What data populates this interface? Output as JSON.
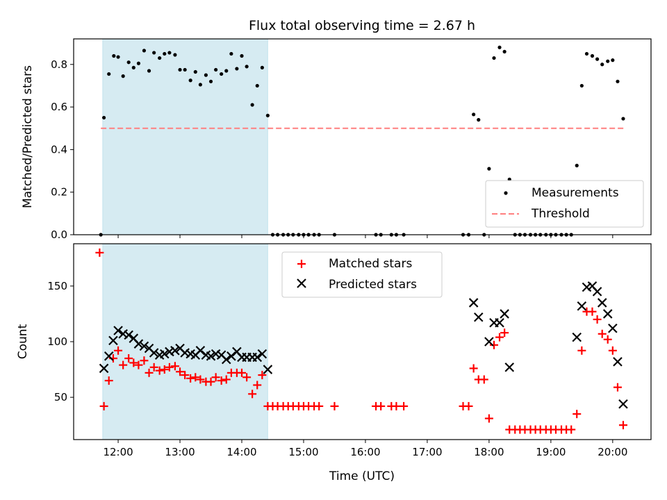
{
  "chart_data": [
    {
      "type": "scatter",
      "title": "Flux total observing time = 2.67 h",
      "xlabel": "",
      "ylabel": "Matched/Predicted stars",
      "ylim": [
        0,
        0.92
      ],
      "yticks": [
        0.0,
        0.2,
        0.4,
        0.6,
        0.8
      ],
      "ytick_labels": [
        "0.0",
        "0.2",
        "0.4",
        "0.6",
        "0.8"
      ],
      "xlim_hours": [
        11.28,
        20.62
      ],
      "xticks_hours": [
        12,
        13,
        14,
        15,
        16,
        17,
        18,
        19,
        20
      ],
      "shaded_span_hours": [
        11.75,
        14.42
      ],
      "legend": "lower-right",
      "threshold": {
        "name": "Threshold",
        "value": 0.5,
        "x_range_hours": [
          11.72,
          20.2
        ],
        "color": "#ff7f7f"
      },
      "series": [
        {
          "name": "Measurements",
          "color": "#000000",
          "marker": "dot",
          "x_hours": [
            11.72,
            11.77,
            11.85,
            11.93,
            12.0,
            12.08,
            12.17,
            12.25,
            12.33,
            12.42,
            12.5,
            12.58,
            12.67,
            12.75,
            12.83,
            12.92,
            13.0,
            13.08,
            13.17,
            13.25,
            13.33,
            13.42,
            13.5,
            13.58,
            13.67,
            13.75,
            13.83,
            13.92,
            14.0,
            14.08,
            14.17,
            14.25,
            14.33,
            14.42,
            14.5,
            14.58,
            14.67,
            14.75,
            14.83,
            14.92,
            15.0,
            15.08,
            15.17,
            15.25,
            15.5,
            16.17,
            16.25,
            16.42,
            16.5,
            16.62,
            17.58,
            17.67,
            17.75,
            17.83,
            17.92,
            18.0,
            18.08,
            18.17,
            18.25,
            18.33,
            18.42,
            18.5,
            18.58,
            18.67,
            18.75,
            18.83,
            18.92,
            19.0,
            19.08,
            19.17,
            19.25,
            19.33,
            19.42,
            19.5,
            19.58,
            19.67,
            19.75,
            19.83,
            19.92,
            20.0,
            20.08,
            20.17
          ],
          "y": [
            0.0,
            0.55,
            0.755,
            0.84,
            0.835,
            0.745,
            0.81,
            0.785,
            0.805,
            0.865,
            0.77,
            0.855,
            0.83,
            0.85,
            0.855,
            0.845,
            0.775,
            0.775,
            0.725,
            0.765,
            0.705,
            0.75,
            0.72,
            0.775,
            0.755,
            0.77,
            0.85,
            0.78,
            0.84,
            0.79,
            0.61,
            0.7,
            0.785,
            0.56,
            0.0,
            0.0,
            0.0,
            0.0,
            0.0,
            0.0,
            0.0,
            0.0,
            0.0,
            0.0,
            0.0,
            0.0,
            0.0,
            0.0,
            0.0,
            0.0,
            0.0,
            0.0,
            0.565,
            0.54,
            0.0,
            0.31,
            0.83,
            0.88,
            0.86,
            0.26,
            0.0,
            0.0,
            0.0,
            0.0,
            0.0,
            0.0,
            0.0,
            0.0,
            0.0,
            0.0,
            0.0,
            0.0,
            0.325,
            0.7,
            0.85,
            0.84,
            0.825,
            0.8,
            0.815,
            0.82,
            0.72,
            0.545
          ]
        }
      ]
    },
    {
      "type": "scatter",
      "title": "",
      "xlabel": "Time (UTC)",
      "ylabel": "Count",
      "ylim": [
        12,
        188
      ],
      "yticks": [
        50,
        100,
        150
      ],
      "ytick_labels": [
        "50",
        "100",
        "150"
      ],
      "xlim_hours": [
        11.28,
        20.62
      ],
      "xticks_hours": [
        12,
        13,
        14,
        15,
        16,
        17,
        18,
        19,
        20
      ],
      "xtick_labels": [
        "12:00",
        "13:00",
        "14:00",
        "15:00",
        "16:00",
        "17:00",
        "18:00",
        "19:00",
        "20:00"
      ],
      "shaded_span_hours": [
        11.75,
        14.42
      ],
      "legend": "upper-center",
      "series": [
        {
          "name": "Matched stars",
          "color": "#ff0000",
          "marker": "plus",
          "points": [
            [
              11.7,
              180
            ],
            [
              11.77,
              42
            ],
            [
              11.85,
              65
            ],
            [
              11.92,
              85
            ],
            [
              12.0,
              92
            ],
            [
              12.08,
              79
            ],
            [
              12.17,
              85
            ],
            [
              12.25,
              81
            ],
            [
              12.33,
              79
            ],
            [
              12.42,
              83
            ],
            [
              12.5,
              72
            ],
            [
              12.58,
              77
            ],
            [
              12.67,
              74
            ],
            [
              12.75,
              75
            ],
            [
              12.83,
              77
            ],
            [
              12.92,
              78
            ],
            [
              13.0,
              73
            ],
            [
              13.08,
              70
            ],
            [
              13.17,
              67
            ],
            [
              13.25,
              68
            ],
            [
              13.33,
              66
            ],
            [
              13.42,
              64
            ],
            [
              13.5,
              64
            ],
            [
              13.58,
              68
            ],
            [
              13.67,
              65
            ],
            [
              13.75,
              66
            ],
            [
              13.83,
              72
            ],
            [
              13.92,
              72
            ],
            [
              14.0,
              72
            ],
            [
              14.08,
              68
            ],
            [
              14.17,
              53
            ],
            [
              14.25,
              61
            ],
            [
              14.33,
              70
            ],
            [
              14.42,
              42
            ],
            [
              14.5,
              42
            ],
            [
              14.58,
              42
            ],
            [
              14.67,
              42
            ],
            [
              14.75,
              42
            ],
            [
              14.83,
              42
            ],
            [
              14.92,
              42
            ],
            [
              15.0,
              42
            ],
            [
              15.08,
              42
            ],
            [
              15.17,
              42
            ],
            [
              15.25,
              42
            ],
            [
              15.5,
              42
            ],
            [
              16.17,
              42
            ],
            [
              16.25,
              42
            ],
            [
              16.42,
              42
            ],
            [
              16.5,
              42
            ],
            [
              16.62,
              42
            ],
            [
              17.58,
              42
            ],
            [
              17.67,
              42
            ],
            [
              17.75,
              76
            ],
            [
              17.83,
              66
            ],
            [
              17.92,
              66
            ],
            [
              18.0,
              31
            ],
            [
              18.08,
              97
            ],
            [
              18.17,
              104
            ],
            [
              18.25,
              108
            ],
            [
              18.33,
              21
            ],
            [
              18.42,
              21
            ],
            [
              18.5,
              21
            ],
            [
              18.58,
              21
            ],
            [
              18.67,
              21
            ],
            [
              18.75,
              21
            ],
            [
              18.83,
              21
            ],
            [
              18.92,
              21
            ],
            [
              19.0,
              21
            ],
            [
              19.08,
              21
            ],
            [
              19.17,
              21
            ],
            [
              19.25,
              21
            ],
            [
              19.33,
              21
            ],
            [
              19.42,
              35
            ],
            [
              19.5,
              92
            ],
            [
              19.58,
              127
            ],
            [
              19.67,
              127
            ],
            [
              19.75,
              120
            ],
            [
              19.83,
              107
            ],
            [
              19.92,
              102
            ],
            [
              20.0,
              92
            ],
            [
              20.08,
              59
            ],
            [
              20.17,
              25
            ]
          ]
        },
        {
          "name": "Predicted stars",
          "color": "#000000",
          "marker": "x",
          "points": [
            [
              11.77,
              76
            ],
            [
              11.85,
              87
            ],
            [
              11.92,
              101
            ],
            [
              12.0,
              110
            ],
            [
              12.08,
              107
            ],
            [
              12.17,
              106
            ],
            [
              12.25,
              103
            ],
            [
              12.33,
              98
            ],
            [
              12.42,
              96
            ],
            [
              12.5,
              94
            ],
            [
              12.58,
              90
            ],
            [
              12.67,
              88
            ],
            [
              12.75,
              89
            ],
            [
              12.83,
              91
            ],
            [
              12.92,
              92
            ],
            [
              13.0,
              94
            ],
            [
              13.08,
              90
            ],
            [
              13.17,
              89
            ],
            [
              13.25,
              88
            ],
            [
              13.33,
              92
            ],
            [
              13.42,
              88
            ],
            [
              13.5,
              87
            ],
            [
              13.58,
              89
            ],
            [
              13.67,
              88
            ],
            [
              13.75,
              84
            ],
            [
              13.83,
              87
            ],
            [
              13.92,
              91
            ],
            [
              14.0,
              86
            ],
            [
              14.08,
              86
            ],
            [
              14.17,
              86
            ],
            [
              14.25,
              86
            ],
            [
              14.33,
              89
            ],
            [
              14.42,
              75
            ],
            [
              17.75,
              135
            ],
            [
              17.83,
              122
            ],
            [
              18.0,
              100
            ],
            [
              18.08,
              117
            ],
            [
              18.17,
              117
            ],
            [
              18.25,
              125
            ],
            [
              18.33,
              77
            ],
            [
              19.42,
              104
            ],
            [
              19.5,
              132
            ],
            [
              19.58,
              149
            ],
            [
              19.67,
              150
            ],
            [
              19.75,
              145
            ],
            [
              19.83,
              135
            ],
            [
              19.92,
              125
            ],
            [
              20.0,
              112
            ],
            [
              20.08,
              82
            ],
            [
              20.17,
              44
            ]
          ]
        }
      ]
    }
  ]
}
